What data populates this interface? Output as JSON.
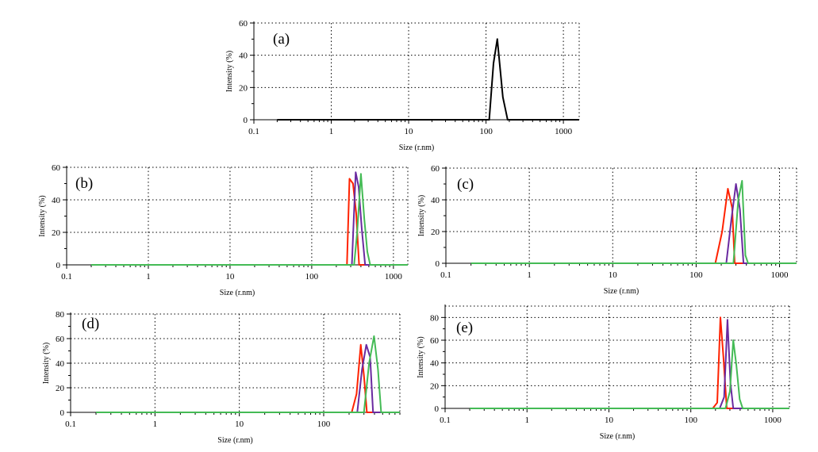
{
  "chart_data": [
    {
      "type": "line",
      "panel_label": "(a)",
      "xlabel": "Size (r.nm)",
      "ylabel": "Intensity (%)",
      "x_scale": "log",
      "xlim": [
        0.1,
        1600
      ],
      "ylim": [
        0,
        60
      ],
      "x_ticks": [
        0.1,
        1,
        10,
        100,
        1000
      ],
      "x_tick_labels": [
        "0.1",
        "1",
        "10",
        "100",
        "1000"
      ],
      "y_ticks": [
        0,
        20,
        40,
        60
      ],
      "y_tick_labels": [
        "0",
        "20",
        "40",
        "60"
      ],
      "grid": true,
      "series": [
        {
          "color": "#000000",
          "x": [
            0.2,
            100,
            110,
            125,
            140,
            165,
            190,
            1600
          ],
          "y": [
            0,
            0,
            0,
            35,
            50,
            14,
            0,
            0
          ]
        }
      ]
    },
    {
      "type": "line",
      "panel_label": "(b)",
      "xlabel": "Size (r.nm)",
      "ylabel": "Intensity (%)",
      "x_scale": "log",
      "xlim": [
        0.1,
        1500
      ],
      "ylim": [
        0,
        60
      ],
      "x_ticks": [
        0.1,
        1,
        10,
        100,
        1000
      ],
      "x_tick_labels": [
        "0.1",
        "1",
        "10",
        "100",
        "1000"
      ],
      "y_ticks": [
        0,
        20,
        40,
        60
      ],
      "y_tick_labels": [
        "0",
        "20",
        "40",
        "60"
      ],
      "grid": true,
      "series": [
        {
          "color": "#ff2200",
          "x": [
            0.2,
            270,
            290,
            320,
            350,
            380,
            1500
          ],
          "y": [
            0,
            0,
            53,
            50,
            32,
            0,
            0
          ]
        },
        {
          "color": "#6a2aa0",
          "x": [
            0.2,
            310,
            345,
            375,
            410,
            450,
            1500
          ],
          "y": [
            0,
            0,
            57,
            48,
            22,
            0,
            0
          ]
        },
        {
          "color": "#44bb55",
          "x": [
            0.2,
            330,
            360,
            400,
            440,
            480,
            520,
            1500
          ],
          "y": [
            0,
            0,
            20,
            56,
            28,
            8,
            0,
            0
          ]
        }
      ]
    },
    {
      "type": "line",
      "panel_label": "(c)",
      "xlabel": "Size (r.nm)",
      "ylabel": "Intensity (%)",
      "x_scale": "log",
      "xlim": [
        0.1,
        1600
      ],
      "ylim": [
        0,
        60
      ],
      "x_ticks": [
        0.1,
        1,
        10,
        100,
        1000
      ],
      "x_tick_labels": [
        "0.1",
        "1",
        "10",
        "100",
        "1000"
      ],
      "y_ticks": [
        0,
        20,
        40,
        60
      ],
      "y_tick_labels": [
        "0",
        "20",
        "40",
        "60"
      ],
      "grid": true,
      "series": [
        {
          "color": "#ff2200",
          "x": [
            0.2,
            170,
            205,
            240,
            270,
            290,
            1600
          ],
          "y": [
            0,
            0,
            20,
            47,
            35,
            0,
            0
          ]
        },
        {
          "color": "#6a2aa0",
          "x": [
            0.2,
            230,
            265,
            300,
            335,
            370,
            1600
          ],
          "y": [
            0,
            0,
            28,
            50,
            34,
            0,
            0
          ]
        },
        {
          "color": "#44bb55",
          "x": [
            0.2,
            280,
            320,
            355,
            390,
            420,
            1600
          ],
          "y": [
            0,
            0,
            40,
            52,
            5,
            0,
            0
          ]
        }
      ]
    },
    {
      "type": "line",
      "panel_label": "(d)",
      "xlabel": "Size (r.nm)",
      "ylabel": "Intensity (%)",
      "x_scale": "log",
      "xlim": [
        0.1,
        800
      ],
      "ylim": [
        0,
        80
      ],
      "x_ticks": [
        0.1,
        1,
        10,
        100
      ],
      "x_tick_labels": [
        "0.1",
        "1",
        "10",
        "100"
      ],
      "y_ticks": [
        0,
        20,
        40,
        60,
        80
      ],
      "y_tick_labels": [
        "0",
        "20",
        "40",
        "60",
        "80"
      ],
      "grid": true,
      "series": [
        {
          "color": "#ff2200",
          "x": [
            0.2,
            215,
            245,
            275,
            300,
            325,
            800
          ],
          "y": [
            0,
            0,
            15,
            55,
            30,
            0,
            0
          ]
        },
        {
          "color": "#6a2aa0",
          "x": [
            0.2,
            250,
            285,
            320,
            355,
            385,
            800
          ],
          "y": [
            0,
            0,
            35,
            55,
            45,
            0,
            0
          ]
        },
        {
          "color": "#44bb55",
          "x": [
            0.2,
            300,
            345,
            395,
            440,
            480,
            800
          ],
          "y": [
            0,
            0,
            40,
            62,
            35,
            0,
            0
          ]
        }
      ]
    },
    {
      "type": "line",
      "panel_label": "(e)",
      "xlabel": "Size (r.nm)",
      "ylabel": "Intensity (%)",
      "x_scale": "log",
      "xlim": [
        0.1,
        1600
      ],
      "ylim": [
        0,
        90
      ],
      "x_ticks": [
        0.1,
        1,
        10,
        100,
        1000
      ],
      "x_tick_labels": [
        "0.1",
        "1",
        "10",
        "100",
        "1000"
      ],
      "y_ticks": [
        0,
        20,
        40,
        60,
        80
      ],
      "y_tick_labels": [
        "0",
        "20",
        "40",
        "60",
        "80"
      ],
      "grid": true,
      "series": [
        {
          "color": "#ff2200",
          "x": [
            0.2,
            185,
            210,
            230,
            250,
            275,
            1600
          ],
          "y": [
            0,
            0,
            5,
            80,
            45,
            0,
            0
          ]
        },
        {
          "color": "#6a2aa0",
          "x": [
            0.2,
            225,
            255,
            280,
            305,
            330,
            1600
          ],
          "y": [
            0,
            0,
            10,
            78,
            22,
            0,
            0
          ]
        },
        {
          "color": "#44bb55",
          "x": [
            0.2,
            265,
            300,
            330,
            360,
            395,
            430,
            1600
          ],
          "y": [
            0,
            0,
            15,
            60,
            38,
            8,
            0,
            0
          ]
        }
      ]
    }
  ]
}
